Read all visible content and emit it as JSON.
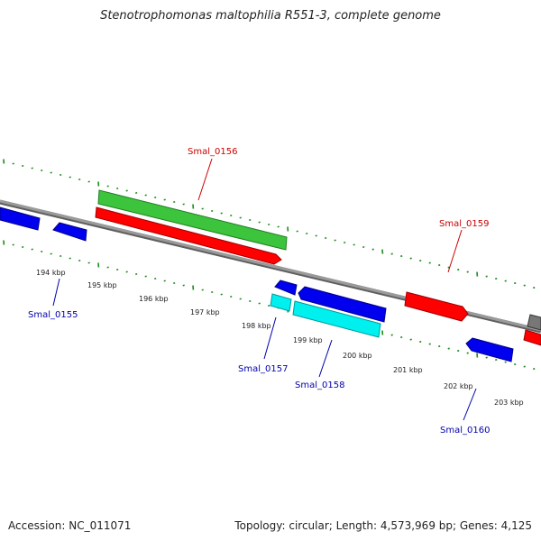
{
  "title": "Stenotrophomonas maltophilia R551-3, complete genome",
  "accession_label": "Accession: NC_011071",
  "summary_label": "Topology: circular; Length: 4,573,969 bp; Genes: 4,125",
  "colors": {
    "backbone": "#8a8a8a",
    "tick": "#1e8c1e",
    "label_red": "#cc0000",
    "label_blue": "#0000aa",
    "gene_red": "#ff0000",
    "gene_green": "#3cc43c",
    "gene_blue": "#0000ee",
    "gene_cyan": "#00f0f0",
    "gene_gray": "#777777"
  },
  "kbp_ticks": [
    "194 kbp",
    "195 kbp",
    "196 kbp",
    "197 kbp",
    "198 kbp",
    "199 kbp",
    "200 kbp",
    "201 kbp",
    "202 kbp",
    "203 kbp"
  ],
  "gene_labels": [
    {
      "name": "Smal_0155",
      "color": "label_blue"
    },
    {
      "name": "Smal_0156",
      "color": "label_red"
    },
    {
      "name": "Smal_0157",
      "color": "label_blue"
    },
    {
      "name": "Smal_0158",
      "color": "label_blue"
    },
    {
      "name": "Smal_0159",
      "color": "label_red"
    },
    {
      "name": "Smal_0160",
      "color": "label_blue"
    }
  ]
}
